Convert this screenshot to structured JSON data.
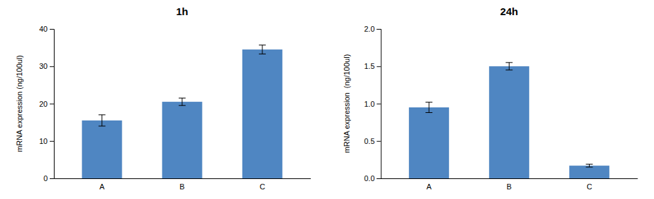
{
  "chart_data": [
    {
      "type": "bar",
      "title": "1h",
      "categories": [
        "A",
        "B",
        "C"
      ],
      "values": [
        15.5,
        20.5,
        34.5
      ],
      "errors": [
        1.5,
        1.0,
        1.2
      ],
      "color": "#4f86c2",
      "ylabel": "mRNA expression (ng/100ul)",
      "ylim": [
        0,
        40
      ],
      "yticks": [
        0,
        10,
        20,
        30,
        40
      ]
    },
    {
      "type": "bar",
      "title": "24h",
      "categories": [
        "A",
        "B",
        "C"
      ],
      "values": [
        0.95,
        1.5,
        0.17
      ],
      "errors": [
        0.07,
        0.05,
        0.02
      ],
      "color": "#4f86c2",
      "ylabel": "mRNA expression  (ng/100ul)",
      "ylim": [
        0,
        2.0
      ],
      "yticks": [
        {
          "value": 0,
          "label": "0.0"
        },
        0.5,
        {
          "value": 1.0,
          "label": "1.0"
        },
        1.5,
        {
          "value": 2.0,
          "label": "2.0"
        }
      ]
    }
  ]
}
